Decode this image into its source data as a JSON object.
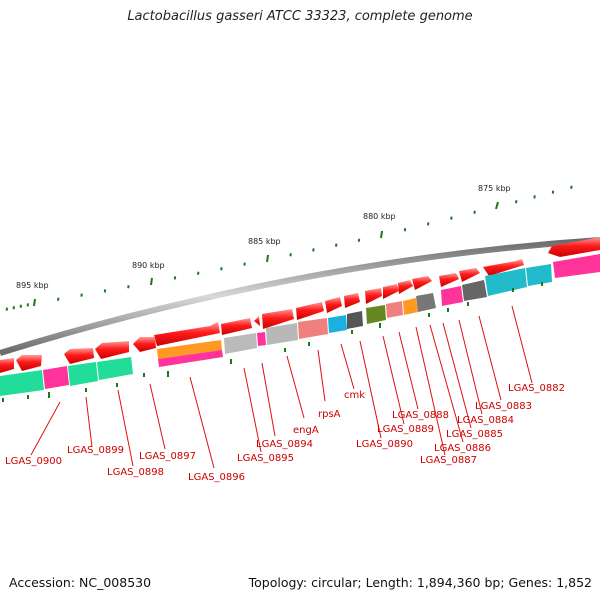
{
  "title": "Lactobacillus gasseri ATCC 33323, complete genome",
  "footer": {
    "accession": "Accession: NC_008530",
    "summary": "Topology: circular; Length: 1,894,360 bp; Genes: 1,852"
  },
  "scale_labels": [
    "875 kbp",
    "880 kbp",
    "885 kbp",
    "890 kbp",
    "895 kbp"
  ],
  "gene_labels": [
    "LGAS_0882",
    "LGAS_0883",
    "LGAS_0884",
    "LGAS_0885",
    "LGAS_0886",
    "LGAS_0887",
    "LGAS_0888",
    "LGAS_0889",
    "LGAS_0890",
    "cmk",
    "rpsA",
    "engA",
    "LGAS_0894",
    "LGAS_0895",
    "LGAS_0896",
    "LGAS_0897",
    "LGAS_0898",
    "LGAS_0899",
    "LGAS_0900"
  ],
  "colors": {
    "backbone": "#8a8a8a",
    "gene_arrow": "#ff0000",
    "label": "#cc0000",
    "tick": "#1a7a1a",
    "cog_green": "#22dd99",
    "cog_magenta": "#ff3399",
    "cog_cyan": "#22bbcc",
    "cog_orange": "#ff9922",
    "cog_grey": "#aaaaaa",
    "cog_dark": "#555555",
    "cog_pink": "#f08080",
    "cog_blue": "#1ab0e0",
    "cog_olive": "#668822"
  }
}
